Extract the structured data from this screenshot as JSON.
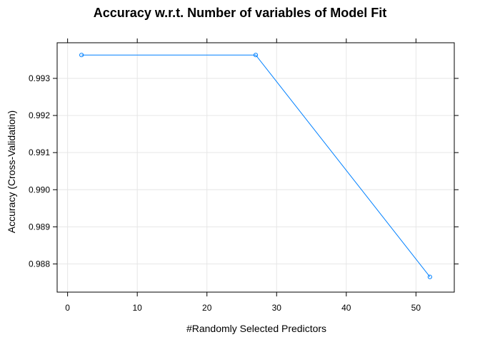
{
  "chart_data": {
    "type": "line",
    "title": "Accuracy w.r.t. Number of variables of Model Fit",
    "xlabel": "#Randomly Selected Predictors",
    "ylabel": "Accuracy (Cross-Validation)",
    "xlim": [
      -1.5,
      55.5
    ],
    "ylim": [
      0.98724,
      0.99396
    ],
    "xticks": [
      0,
      10,
      20,
      30,
      40,
      50
    ],
    "xtick_labels": [
      "0",
      "10",
      "20",
      "30",
      "40",
      "50"
    ],
    "yticks": [
      0.988,
      0.989,
      0.99,
      0.991,
      0.992,
      0.993
    ],
    "ytick_labels": [
      "0.988",
      "0.989",
      "0.990",
      "0.991",
      "0.992",
      "0.993"
    ],
    "grid": true,
    "legend": "none",
    "series": [
      {
        "x": [
          2,
          27,
          52
        ],
        "y": [
          0.99363,
          0.99363,
          0.98765
        ],
        "marker": "circle",
        "color": "#0080ff"
      }
    ]
  },
  "colors": {
    "line": "#0080ff",
    "grid": "#e6e6e6",
    "frame": "#000000"
  }
}
